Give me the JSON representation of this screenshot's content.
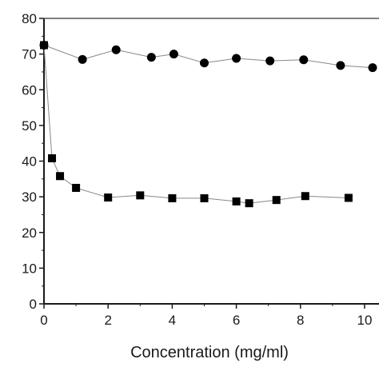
{
  "chart_data": {
    "type": "scatter",
    "title": "",
    "xlabel": "Concentration (mg/ml)",
    "ylabel": "",
    "xlim": [
      0,
      10.3
    ],
    "ylim": [
      0,
      80
    ],
    "xticks": [
      0,
      2,
      4,
      6,
      8,
      10
    ],
    "yticks": [
      0,
      10,
      20,
      30,
      40,
      50,
      60,
      70,
      80
    ],
    "grid": false,
    "series": [
      {
        "marker": "circle",
        "color": "#000000",
        "line_color": "#888888",
        "x": [
          0,
          1.2,
          2.25,
          3.35,
          4.05,
          5.0,
          6.0,
          7.05,
          8.1,
          9.25,
          10.25
        ],
        "y": [
          72.5,
          68.5,
          71.2,
          69.1,
          70.0,
          67.5,
          68.8,
          68.1,
          68.4,
          66.8,
          66.2
        ]
      },
      {
        "marker": "square",
        "color": "#000000",
        "line_color": "#888888",
        "x": [
          0,
          0.25,
          0.5,
          1.0,
          2.0,
          3.0,
          4.0,
          5.0,
          6.0,
          6.4,
          7.25,
          8.15,
          9.5
        ],
        "y": [
          72.5,
          40.8,
          35.8,
          32.5,
          29.8,
          30.4,
          29.6,
          29.6,
          28.7,
          28.2,
          29.1,
          30.2,
          29.7
        ]
      }
    ]
  }
}
